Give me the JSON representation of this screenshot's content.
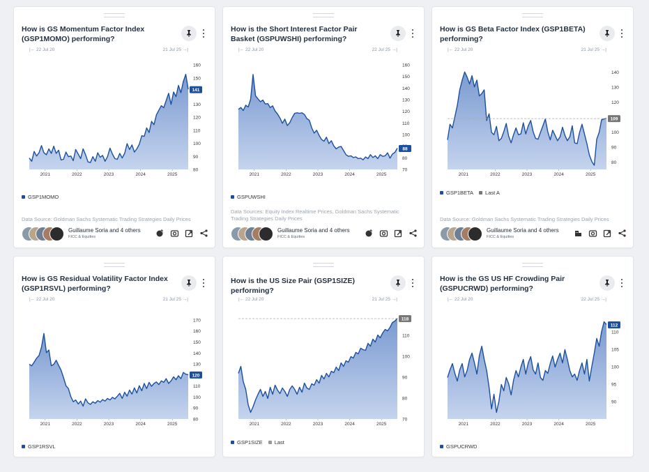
{
  "colors": {
    "line": "#1c4f9c",
    "fill_top": "#7a9ad0",
    "fill_bottom": "#c5d4ee",
    "tag": "#1c4f9c",
    "grey_tag": "#777777",
    "ref": "#aaaaaa"
  },
  "cards": [
    {
      "title": "How is GS Momentum Factor Index (GSP1MOMO) performing?",
      "range_start": "22 Jul 20",
      "range_end": "21 Jul 25",
      "legend": [
        {
          "label": "GSP1MOMO",
          "color": "#1c4f9c"
        }
      ],
      "source": "Data Source: Goldman Sachs Systematic Trading Strategies Daily Prices",
      "author": "Guillaume Soria and 4 others",
      "team": "FICC & Equities",
      "footer_icons": [
        "add-chart-icon",
        "camera-icon",
        "open-external-icon",
        "share-icon"
      ],
      "chart_data": {
        "type": "line",
        "series_name": "GSP1MOMO",
        "x_start": 2020.55,
        "x_end": 2025.55,
        "x_ticks": [
          2021,
          2022,
          2023,
          2024,
          2025
        ],
        "ylim": [
          80,
          160
        ],
        "y_ticks": [
          80,
          90,
          100,
          110,
          120,
          130,
          140,
          150,
          160
        ],
        "last_value": 141,
        "last_label": "141",
        "points": [
          89,
          86,
          94,
          90,
          93,
          98,
          93,
          91,
          96,
          92,
          98,
          92,
          95,
          87,
          88,
          93,
          90,
          90,
          87,
          95,
          92,
          88,
          96,
          91,
          86,
          85,
          90,
          86,
          93,
          89,
          91,
          86,
          90,
          96,
          92,
          88,
          88,
          92,
          89,
          92,
          100,
          95,
          99,
          93,
          96,
          99,
          106,
          105,
          112,
          108,
          117,
          114,
          122,
          125,
          129,
          127,
          133,
          138,
          130,
          139,
          136,
          144,
          139,
          147,
          153,
          141
        ]
      }
    },
    {
      "title": "How is the Short Interest Factor Pair Basket (GSPUWSHI) performing?",
      "range_start": "22 Jul 20",
      "range_end": "22 Jul 25",
      "legend": [
        {
          "label": "GSPUWSHI",
          "color": "#1c4f9c"
        }
      ],
      "source": "Data Sources: Equity Index Realtime Prices, Goldman Sachs Systematic Trading Strategies Daily Prices",
      "author": "Guillaume Soria and 4 others",
      "team": "FICC & Equities",
      "footer_icons": [
        "add-chart-icon",
        "camera-icon",
        "open-external-icon",
        "share-icon"
      ],
      "chart_data": {
        "type": "line",
        "series_name": "GSPUWSHI",
        "x_start": 2020.55,
        "x_end": 2025.55,
        "x_ticks": [
          2021,
          2022,
          2023,
          2024,
          2025
        ],
        "ylim": [
          70,
          160
        ],
        "y_ticks": [
          70,
          80,
          90,
          100,
          110,
          120,
          130,
          140,
          150,
          160
        ],
        "last_value": 88,
        "last_label": "88",
        "points": [
          122,
          123,
          121,
          125,
          124,
          130,
          152,
          133,
          131,
          128,
          130,
          126,
          127,
          123,
          125,
          120,
          118,
          114,
          110,
          113,
          108,
          110,
          115,
          118,
          119,
          118,
          119,
          117,
          114,
          112,
          106,
          101,
          104,
          99,
          96,
          94,
          98,
          92,
          95,
          90,
          88,
          89,
          90,
          86,
          83,
          81,
          82,
          80,
          81,
          79,
          80,
          78,
          81,
          79,
          83,
          80,
          82,
          79,
          83,
          81,
          82,
          84,
          80,
          83,
          85,
          88
        ]
      }
    },
    {
      "title": "How is GS Beta Factor Index (GSP1BETA) performing?",
      "range_start": "22 Jul 20",
      "range_end": "21 Jul 25",
      "legend": [
        {
          "label": "GSP1BETA",
          "color": "#1c4f9c"
        },
        {
          "label": "Last A",
          "color": "#777777"
        }
      ],
      "source": "Data Source: Goldman Sachs Systematic Trading Strategies Daily Prices",
      "author": "Guillaume Soria and 4 others",
      "team": "FICC & Equities",
      "footer_icons": [
        "building-icon",
        "camera-icon",
        "open-external-icon",
        "share-icon"
      ],
      "chart_data": {
        "type": "line",
        "series_name": "GSP1BETA",
        "x_start": 2020.55,
        "x_end": 2025.55,
        "x_ticks": [
          2021,
          2022,
          2023,
          2024,
          2025
        ],
        "ylim": [
          75,
          145
        ],
        "y_ticks": [
          80,
          90,
          100,
          110,
          120,
          130,
          140
        ],
        "reference_line": 109,
        "last_value": 109,
        "last_label": "109",
        "points": [
          95,
          105,
          103,
          110,
          118,
          128,
          135,
          140,
          137,
          132,
          138,
          130,
          135,
          124,
          126,
          128,
          108,
          112,
          100,
          98,
          104,
          94,
          96,
          100,
          106,
          97,
          93,
          98,
          103,
          98,
          99,
          106,
          99,
          104,
          108,
          100,
          96,
          95,
          100,
          104,
          109,
          100,
          95,
          101,
          98,
          94,
          97,
          103,
          98,
          94,
          97,
          104,
          93,
          92,
          100,
          105,
          99,
          92,
          85,
          80,
          78,
          95,
          100,
          108,
          109,
          109
        ]
      }
    },
    {
      "title": "How is GS Residual Volatility Factor Index (GSP1RSVL) performing?",
      "range_start": "22 Jul 20",
      "range_end": "21 Jul 25",
      "legend": [
        {
          "label": "GSP1RSVL",
          "color": "#1c4f9c"
        }
      ],
      "chart_data": {
        "type": "line",
        "series_name": "GSP1RSVL",
        "x_start": 2020.55,
        "x_end": 2025.55,
        "x_ticks": [
          2021,
          2022,
          2023,
          2024,
          2025
        ],
        "ylim": [
          80,
          175
        ],
        "y_ticks": [
          80,
          90,
          100,
          110,
          120,
          130,
          140,
          150,
          160,
          170
        ],
        "last_value": 120,
        "last_label": "120",
        "points": [
          130,
          128,
          132,
          135,
          138,
          145,
          158,
          140,
          143,
          128,
          130,
          133,
          129,
          124,
          118,
          110,
          108,
          100,
          96,
          97,
          94,
          96,
          92,
          98,
          95,
          93,
          96,
          94,
          97,
          95,
          98,
          96,
          99,
          97,
          100,
          98,
          101,
          103,
          99,
          104,
          101,
          106,
          103,
          108,
          104,
          110,
          106,
          112,
          108,
          113,
          110,
          112,
          114,
          111,
          115,
          113,
          117,
          112,
          115,
          118,
          116,
          119,
          117,
          122,
          121,
          120
        ]
      }
    },
    {
      "title": "How is the US Size Pair (GSP1SIZE) performing?",
      "range_start": "22 Jul 20",
      "range_end": "21 Jul 25",
      "legend": [
        {
          "label": "GSP1SIZE",
          "color": "#1c4f9c"
        },
        {
          "label": "Last",
          "color": "#999999"
        }
      ],
      "chart_data": {
        "type": "line",
        "series_name": "GSP1SIZE",
        "x_start": 2020.55,
        "x_end": 2025.55,
        "x_ticks": [
          2021,
          2022,
          2023,
          2024,
          2025
        ],
        "ylim": [
          70,
          120
        ],
        "y_ticks": [
          70,
          80,
          90,
          100,
          110
        ],
        "reference_line": 118,
        "last_value": 118,
        "last_label": "118",
        "points": [
          92,
          95,
          88,
          84,
          77,
          73,
          76,
          79,
          82,
          84,
          81,
          83,
          80,
          85,
          82,
          86,
          84,
          82,
          85,
          83,
          81,
          84,
          86,
          84,
          82,
          85,
          83,
          87,
          85,
          84,
          87,
          86,
          89,
          87,
          91,
          89,
          92,
          90,
          93,
          92,
          95,
          93,
          97,
          95,
          98,
          97,
          100,
          99,
          102,
          101,
          104,
          103,
          103,
          106,
          105,
          108,
          107,
          110,
          109,
          111,
          113,
          112,
          114,
          116,
          117,
          118
        ]
      }
    },
    {
      "title": "How is the GS US HF Crowding Pair (GSPUCRWD) performing?",
      "range_start": "22 Jul 20",
      "range_end": "22 Jul 25",
      "legend": [
        {
          "label": "GSPUCRWD",
          "color": "#1c4f9c"
        }
      ],
      "chart_data": {
        "type": "line",
        "series_name": "GSPUCRWD",
        "x_start": 2020.55,
        "x_end": 2025.55,
        "x_ticks": [
          2021,
          2022,
          2023,
          2024,
          2025
        ],
        "ylim": [
          85,
          115
        ],
        "y_ticks": [
          90,
          95,
          100,
          105,
          110
        ],
        "last_value": 112,
        "last_label": "112",
        "points": [
          97,
          99,
          101,
          98,
          96,
          99,
          101,
          97,
          99,
          102,
          104,
          101,
          98,
          103,
          106,
          102,
          99,
          94,
          88,
          92,
          87,
          90,
          95,
          93,
          97,
          95,
          92,
          96,
          99,
          97,
          100,
          102,
          98,
          101,
          103,
          99,
          98,
          101,
          97,
          96,
          99,
          98,
          101,
          103,
          100,
          102,
          104,
          101,
          105,
          102,
          99,
          97,
          98,
          96,
          99,
          101,
          98,
          102,
          96,
          100,
          104,
          108,
          106,
          110,
          113,
          112
        ]
      }
    }
  ]
}
